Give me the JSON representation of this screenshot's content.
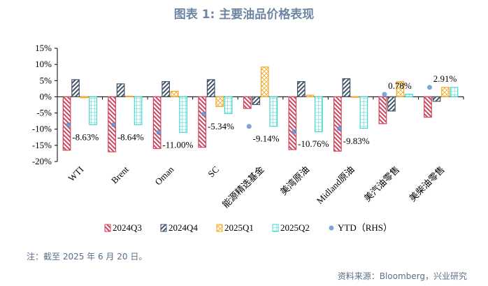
{
  "title": "图表 1:  主要油品价格表现",
  "note": "注：截至 2025 年 6 月 20 日。",
  "source": "资料来源：Bloomberg，兴业研究",
  "chart_data": {
    "type": "bar",
    "categories": [
      "WTI",
      "Brent",
      "Oman",
      "SC",
      "能源精选基金",
      "美湾原油",
      "Midland原油",
      "美汽油零售",
      "美柴油零售"
    ],
    "series": [
      {
        "name": "2024Q3",
        "values": [
          -16.5,
          -17.0,
          -16.0,
          -15.6,
          -3.6,
          -16.3,
          -16.8,
          -8.3,
          -6.3
        ],
        "color": "#d0455c",
        "pattern": "diag-down"
      },
      {
        "name": "2024Q4",
        "values": [
          5.3,
          4.0,
          4.7,
          5.3,
          -2.4,
          4.7,
          5.6,
          -4.4,
          -1.4
        ],
        "color": "#44546a",
        "pattern": "diag-up"
      },
      {
        "name": "2025Q1",
        "values": [
          -0.3,
          0.2,
          1.7,
          -3.0,
          9.2,
          0.5,
          0.0,
          4.7,
          2.9
        ],
        "color": "#f5a623",
        "pattern": "cross"
      },
      {
        "name": "2025Q2",
        "values": [
          -8.6,
          -8.6,
          -11.0,
          -5.2,
          -9.1,
          -10.8,
          -9.7,
          0.8,
          2.9
        ],
        "color": "#3fd9d0",
        "pattern": "grid"
      }
    ],
    "ytd": {
      "name": "YTD（RHS）",
      "values": [
        -8.63,
        -8.64,
        -11.0,
        -5.34,
        -9.14,
        -10.76,
        -9.83,
        0.78,
        2.91
      ],
      "labels": [
        "-8.63%",
        "-8.64%",
        "-11.00%",
        "-5.34%",
        "-9.14%",
        "-10.76%",
        "-9.83%",
        "0.78%",
        "2.91%"
      ],
      "color": "#5b8fd0"
    },
    "yticks": [
      "15%",
      "10%",
      "5%",
      "0%",
      "-5%",
      "-10%",
      "-15%",
      "-20%"
    ],
    "ylim": [
      -20,
      15
    ],
    "legend": "bottom"
  }
}
